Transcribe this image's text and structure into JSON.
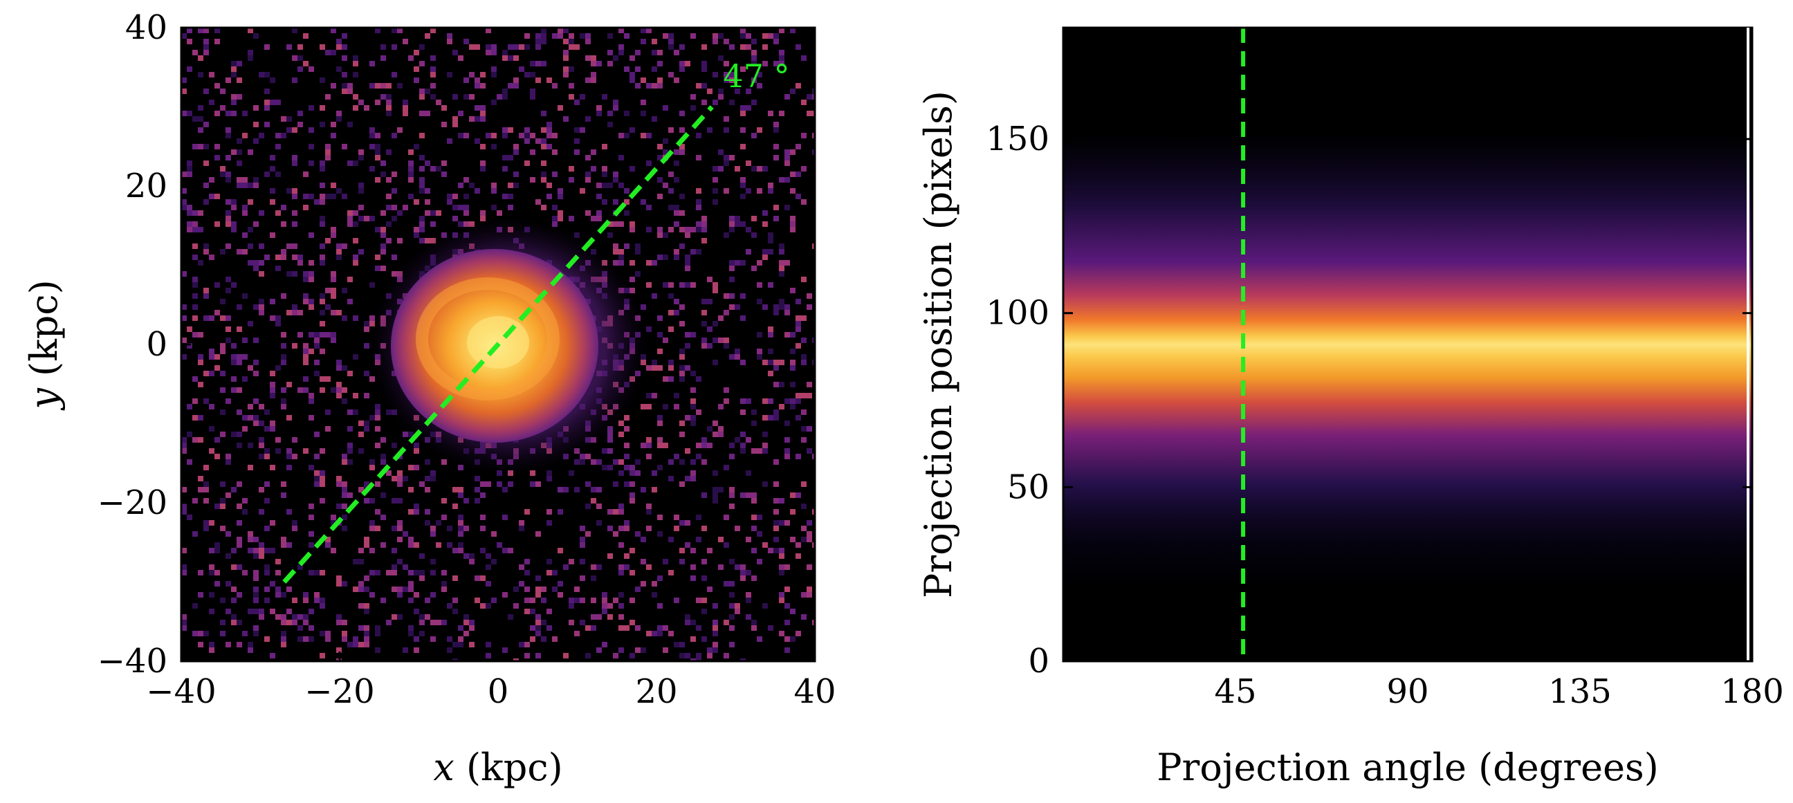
{
  "chart_data": [
    {
      "type": "heatmap",
      "panel": "left",
      "title": "",
      "xlabel_var": "x",
      "xlabel_unit": "(kpc)",
      "ylabel_var": "y",
      "ylabel_unit": "(kpc)",
      "xlim": [
        -40,
        40
      ],
      "ylim": [
        -40,
        40
      ],
      "xticks": [
        -40,
        -20,
        0,
        20,
        40
      ],
      "yticks": [
        -40,
        -20,
        0,
        20,
        40
      ],
      "xtick_labels": [
        "−40",
        "−20",
        "0",
        "20",
        "40"
      ],
      "ytick_labels": [
        "−40",
        "−20",
        "0",
        "20",
        "40"
      ],
      "colormap": "inferno",
      "description_values": {
        "source_center": [
          0,
          0
        ],
        "source_radius_kpc": 13
      },
      "line": {
        "style": "dashed",
        "color": "#22ee22",
        "x": [
          -27,
          27
        ],
        "y": [
          -30,
          30
        ]
      },
      "annotation": {
        "text": "47 °",
        "x": 30,
        "y": 36,
        "color": "#22ee22"
      }
    },
    {
      "type": "heatmap",
      "panel": "right",
      "title": "",
      "xlabel": "Projection angle (degrees)",
      "ylabel": "Projection position (pixels)",
      "xlim": [
        0,
        180
      ],
      "ylim": [
        0,
        182
      ],
      "xticks": [
        45,
        90,
        135,
        180
      ],
      "yticks": [
        0,
        50,
        100,
        150
      ],
      "xtick_labels": [
        "45",
        "90",
        "135",
        "180"
      ],
      "ytick_labels": [
        "0",
        "50",
        "100",
        "150"
      ],
      "colormap": "inferno",
      "band": {
        "center": 91,
        "half_width": 18
      },
      "vline": {
        "style": "dashed",
        "color": "#22ee22",
        "x": 47
      }
    }
  ],
  "colors": {
    "line_green": "#22ee22",
    "background": "#000000"
  }
}
